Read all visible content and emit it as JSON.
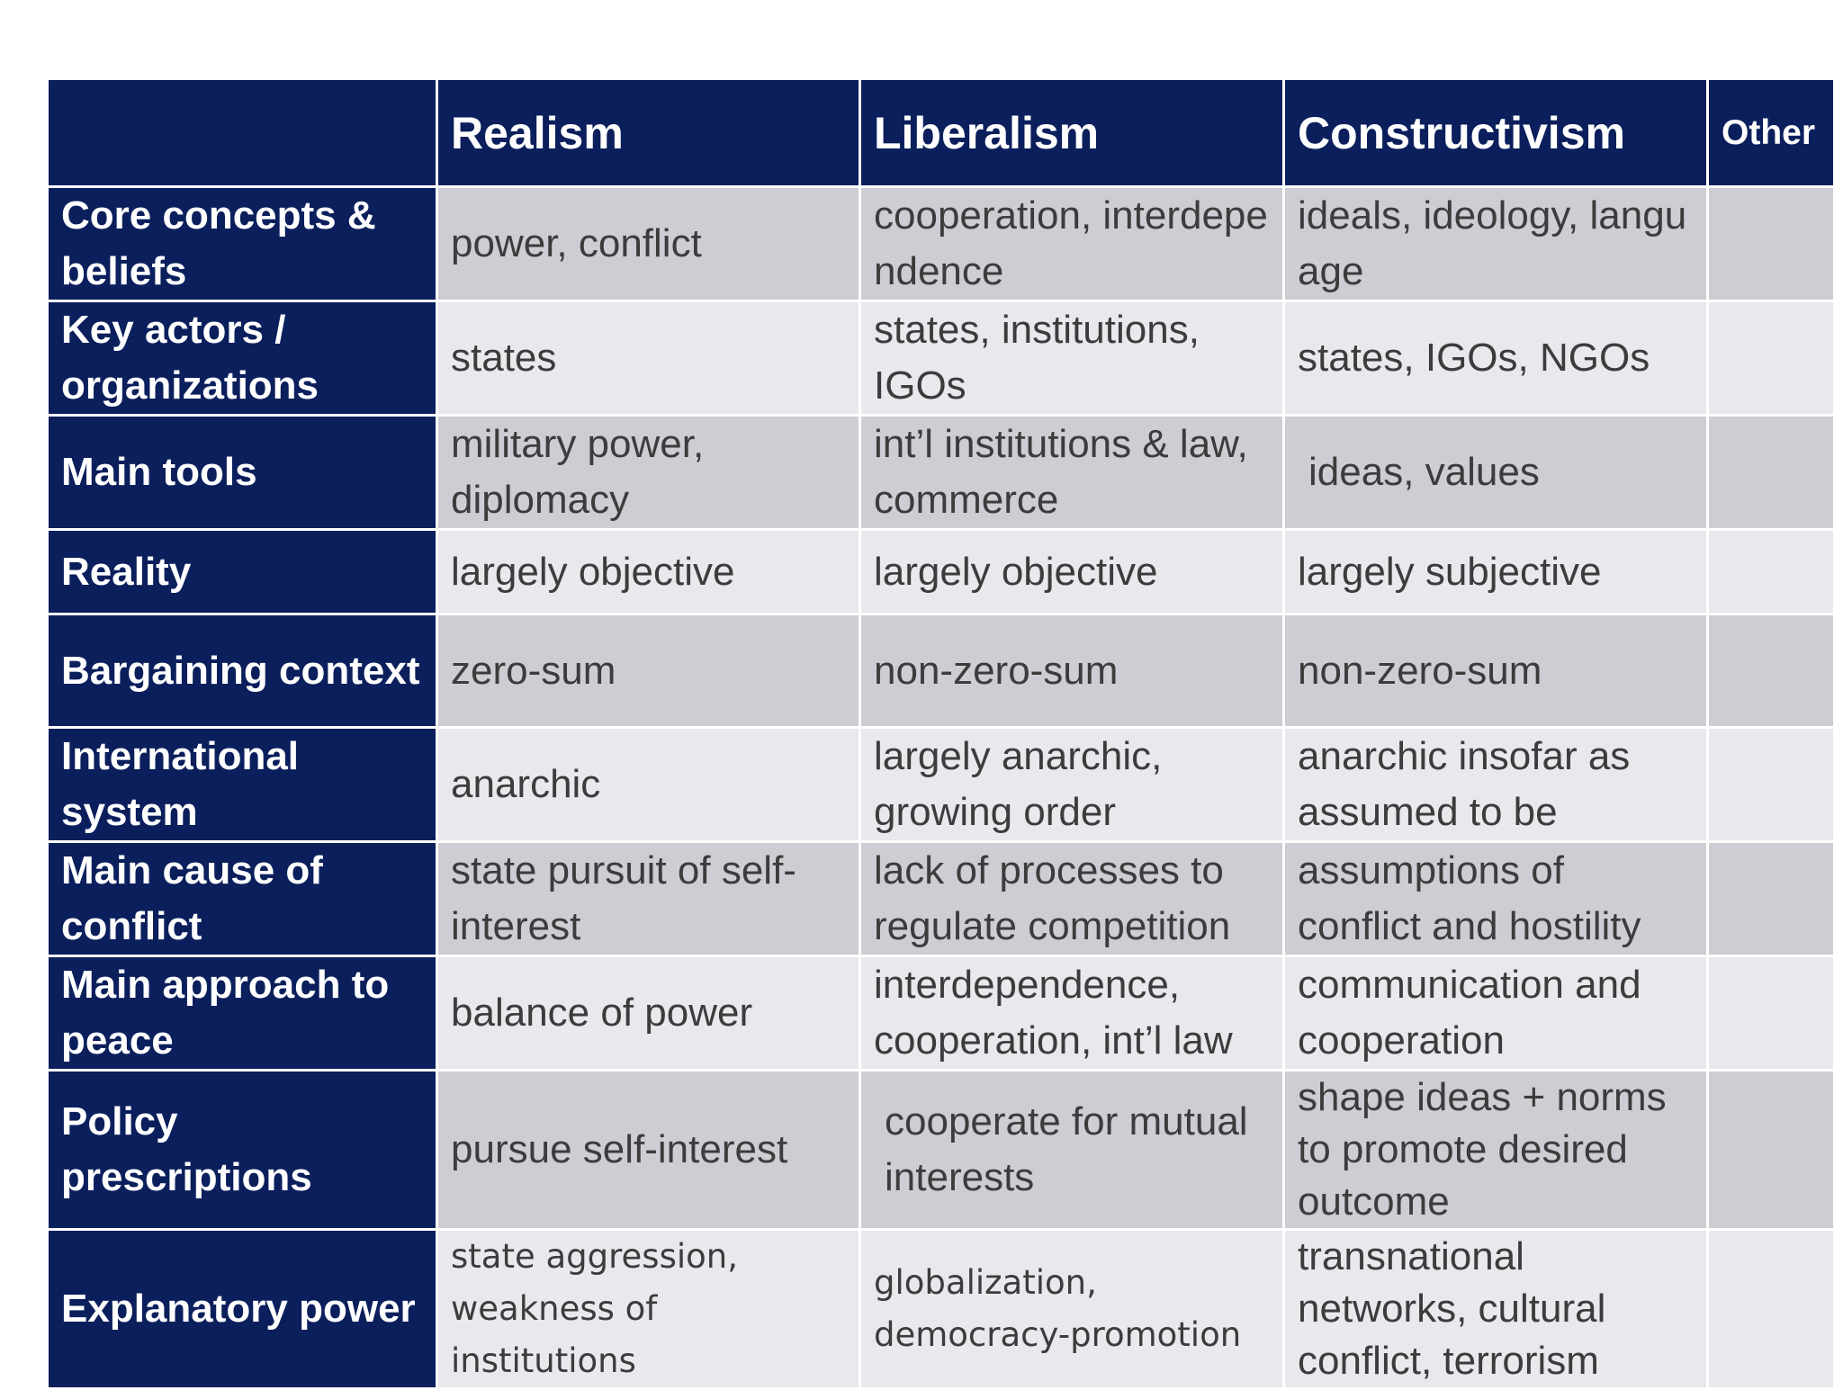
{
  "table": {
    "headers": [
      "",
      "Realism",
      "Liberalism",
      "Constructivism",
      "Other"
    ],
    "rows": [
      {
        "label": "Core concepts & beliefs",
        "realism": "power, conflict",
        "liberalism": "cooperation, interdependence",
        "constructivism": "ideals, ideology, language",
        "other": ""
      },
      {
        "label": "Key actors / organizations",
        "realism": "states",
        "liberalism": "states, institutions, IGOs",
        "constructivism": "states, IGOs, NGOs",
        "other": ""
      },
      {
        "label": "Main tools",
        "realism": "military power, diplomacy",
        "liberalism": "int’l institutions & law, commerce",
        "constructivism": "ideas, values",
        "other": ""
      },
      {
        "label": "Reality",
        "realism": "largely objective",
        "liberalism": "largely objective",
        "constructivism": "largely subjective",
        "other": ""
      },
      {
        "label": "Bargaining context",
        "realism": "zero-sum",
        "liberalism": "non-zero-sum",
        "constructivism": "non-zero-sum",
        "other": ""
      },
      {
        "label": "International system",
        "realism": "anarchic",
        "liberalism": "largely anarchic, growing order",
        "constructivism": "anarchic insofar as assumed to be",
        "other": ""
      },
      {
        "label": "Main cause of conflict",
        "realism": "state pursuit of self-interest",
        "liberalism": "lack of processes to regulate competition",
        "constructivism": "assumptions of conflict and hostility",
        "other": ""
      },
      {
        "label": "Main approach to peace",
        "realism": "balance of power",
        "liberalism": "interdependence, cooperation, int’l law",
        "constructivism": "communication and cooperation",
        "other": ""
      },
      {
        "label": "Policy prescriptions",
        "realism": "pursue self-interest",
        "liberalism": "cooperate for mutual interests",
        "constructivism": "shape ideas + norms to promote desired outcome",
        "other": ""
      },
      {
        "label": "Explanatory power",
        "realism": "state aggression, weakness of institutions",
        "liberalism": "globalization, democracy-promotion",
        "constructivism": "transnational networks, cultural conflict, terrorism",
        "other": ""
      }
    ]
  },
  "colors": {
    "header_bg": "#0b1f5c",
    "row_dark": "#cdcdd3",
    "row_light": "#e8e8ed",
    "cell_text": "#3c3c3c"
  }
}
